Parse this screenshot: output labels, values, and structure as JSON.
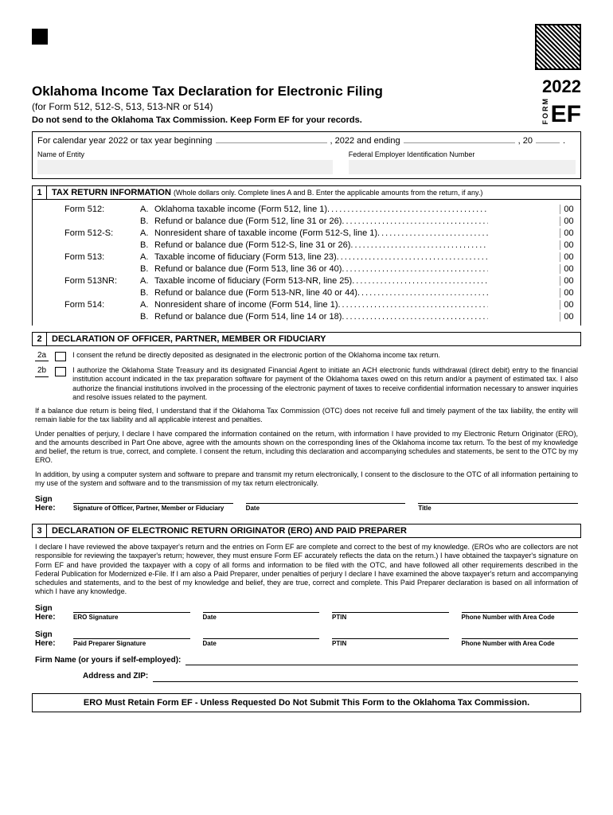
{
  "header": {
    "title": "Oklahoma Income Tax Declaration for Electronic Filing",
    "subtitle": "(for Form 512, 512-S, 513, 513-NR or 514)",
    "warning": "Do not send to the Oklahoma Tax Commission. Keep Form EF for your records.",
    "year": "2022",
    "form_label": "FORM",
    "form_code": "EF"
  },
  "calendar": {
    "prefix": "For calendar year 2022 or tax year beginning",
    "middle": ", 2022 and ending",
    "suffix": ", 20",
    "period": "."
  },
  "entity": {
    "name_label": "Name of Entity",
    "fein_label": "Federal Employer Identification Number"
  },
  "section1": {
    "num": "1",
    "title": "TAX RETURN INFORMATION",
    "note": "(Whole dollars only. Complete lines A and B.  Enter the applicable amounts from the return, if any.)",
    "lines": [
      {
        "form": "Form 512:",
        "letter": "A.",
        "desc": "Oklahoma taxable income (Form 512, line 1)",
        "cents": "00"
      },
      {
        "form": "",
        "letter": "B.",
        "desc": "Refund or balance due (Form 512, line 31 or 26)",
        "cents": "00"
      },
      {
        "form": "Form 512-S:",
        "letter": "A.",
        "desc": "Nonresident share of taxable income (Form 512-S, line 1)",
        "cents": "00"
      },
      {
        "form": "",
        "letter": "B.",
        "desc": "Refund or balance due (Form 512-S, line 31 or 26)",
        "cents": "00"
      },
      {
        "form": "Form 513:",
        "letter": "A.",
        "desc": "Taxable income of fiduciary (Form 513, line 23)",
        "cents": "00"
      },
      {
        "form": "",
        "letter": "B.",
        "desc": "Refund or balance due (Form 513, line 36 or 40)",
        "cents": "00"
      },
      {
        "form": "Form 513NR:",
        "letter": "A.",
        "desc": "Taxable income of fiduciary (Form 513-NR, line 25)",
        "cents": "00"
      },
      {
        "form": "",
        "letter": "B.",
        "desc": "Refund or balance due (Form 513-NR, line 40 or 44)",
        "cents": "00"
      },
      {
        "form": "Form 514:",
        "letter": "A.",
        "desc": "Nonresident share of income (Form 514, line 1)",
        "cents": "00"
      },
      {
        "form": "",
        "letter": "B.",
        "desc": "Refund or balance due (Form 514, line 14 or 18)",
        "cents": "00"
      }
    ]
  },
  "section2": {
    "num": "2",
    "title": "DECLARATION OF OFFICER, PARTNER, MEMBER OR FIDUCIARY",
    "cb2a_label": "2a",
    "cb2a_text": "I consent the refund be directly deposited as designated in the electronic portion of the Oklahoma income tax return.",
    "cb2b_label": "2b",
    "cb2b_text": "I authorize the Oklahoma State Treasury and its designated Financial Agent to initiate an ACH electronic funds withdrawal (direct debit) entry to the financial institution account indicated in the tax preparation software for payment of the Oklahoma taxes owed on this return and/or a payment of estimated tax. I also authorize the financial institutions involved in the processing of the electronic payment of taxes to receive confidential information necessary to answer inquiries and resolve issues related to the payment.",
    "para1": "If a balance due return is being filed, I understand that if the Oklahoma Tax Commission (OTC) does not receive full and timely payment of the tax liability, the entity will remain liable for the tax liability and all applicable interest and penalties.",
    "para2": "Under penalties of perjury, I declare I have compared the information contained on the return, with information I have provided to my Electronic Return Originator (ERO), and the amounts described in Part One above, agree with the amounts shown on the corresponding lines of the Oklahoma income tax return. To the best of my knowledge and belief, the return is true, correct, and complete. I consent the return, including this declaration and accompanying schedules and statements, be sent to the OTC by my ERO.",
    "para3": "In addition, by using a computer system and software to prepare and transmit my return electronically, I consent to the disclosure to the OTC of all information pertaining to my use of the system and software and to the transmission of my tax return electronically.",
    "sign_here": "Sign Here:",
    "sig_caption": "Signature of Officer, Partner, Member or Fiduciary",
    "date_caption": "Date",
    "title_caption": "Title"
  },
  "section3": {
    "num": "3",
    "title": "DECLARATION OF ELECTRONIC RETURN ORIGINATOR (ERO) AND PAID PREPARER",
    "para": "I declare I have reviewed the above taxpayer's return and the entries on Form EF are complete and correct to the best of my knowledge. (EROs who are collectors are not responsible for reviewing the taxpayer's return; however, they must ensure Form EF accurately reflects the data on the return.) I have obtained the taxpayer's signature on Form EF and have provided the taxpayer with a copy of all forms and information to be filed with the OTC, and have followed all other requirements described in the Federal Publication for Modernized e-File. If I am also a Paid Preparer, under penalties of perjury I declare I have examined the above taxpayer's return and accompanying schedules and statements, and to the best of my knowledge and belief, they are true, correct and complete. This Paid Preparer declaration is based on all information of which I have any knowledge.",
    "sign_here": "Sign Here:",
    "ero_sig": "ERO Signature",
    "date": "Date",
    "ptin": "PTIN",
    "phone": "Phone Number with Area Code",
    "preparer_sig": "Paid Preparer  Signature",
    "firm_label": "Firm Name (or yours if self-employed):",
    "addr_label": "Address and ZIP:"
  },
  "retain": "ERO Must Retain Form EF - Unless Requested Do Not Submit This Form to the Oklahoma Tax Commission."
}
